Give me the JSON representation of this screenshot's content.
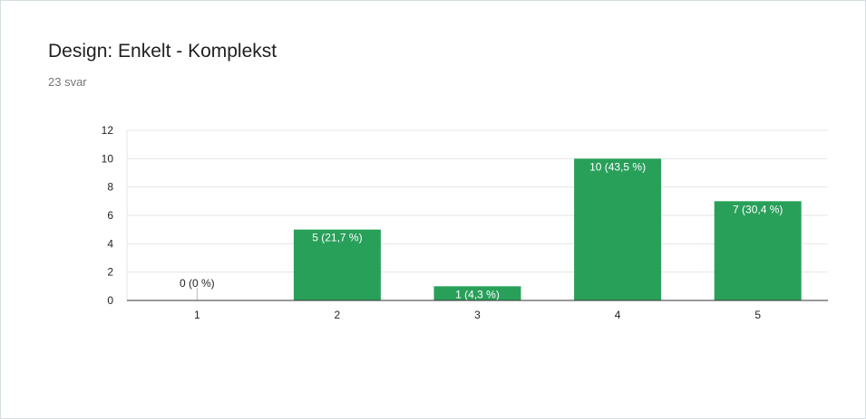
{
  "header": {
    "title": "Design: Enkelt - Komplekst",
    "response_count": "23 svar"
  },
  "colors": {
    "bar": "#28a05a",
    "label_inside": "#ffffff",
    "label_outside": "#222222",
    "grid": "#e6e6e6",
    "axis": "#333333"
  },
  "chart_data": {
    "type": "bar",
    "title": "Design: Enkelt - Komplekst",
    "xlabel": "",
    "ylabel": "",
    "categories": [
      "1",
      "2",
      "3",
      "4",
      "5"
    ],
    "values": [
      0,
      5,
      1,
      10,
      7
    ],
    "data_labels": [
      "0 (0 %)",
      "5 (21,7 %)",
      "1 (4,3 %)",
      "10 (43,5 %)",
      "7 (30,4 %)"
    ],
    "ylim": [
      0,
      12
    ],
    "yticks": [
      0,
      2,
      4,
      6,
      8,
      10,
      12
    ],
    "grid": true,
    "legend": "none"
  }
}
